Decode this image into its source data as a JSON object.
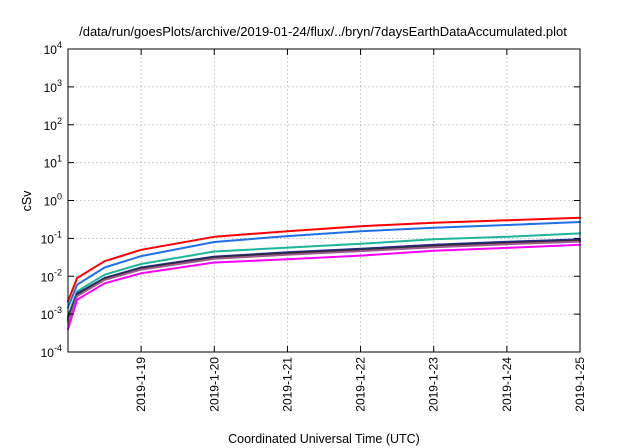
{
  "chart_data": {
    "type": "line",
    "title": "/data/run/goesPlots/archive/2019-01-24/flux/../bryn/7daysEarthDataAccumulated.plot",
    "xlabel": "Coordinated Universal Time (UTC)",
    "ylabel": "cSv",
    "y_scale": "log",
    "ylim": [
      0.0001,
      10000
    ],
    "y_ticks": [
      {
        "value": 0.0001,
        "base": "10",
        "exp": "-4"
      },
      {
        "value": 0.001,
        "base": "10",
        "exp": "-3"
      },
      {
        "value": 0.01,
        "base": "10",
        "exp": "-2"
      },
      {
        "value": 0.1,
        "base": "10",
        "exp": "-1"
      },
      {
        "value": 1,
        "base": "10",
        "exp": "0"
      },
      {
        "value": 10,
        "base": "10",
        "exp": "1"
      },
      {
        "value": 100,
        "base": "10",
        "exp": "2"
      },
      {
        "value": 1000,
        "base": "10",
        "exp": "3"
      },
      {
        "value": 10000,
        "base": "10",
        "exp": "4"
      }
    ],
    "xlim": [
      "2019-01-18",
      "2019-01-25"
    ],
    "x_ticks": [
      "2019-1-19",
      "2019-1-20",
      "2019-1-21",
      "2019-1-22",
      "2019-1-23",
      "2019-1-24",
      "2019-1-25"
    ],
    "grid": true,
    "x": [
      "2019-01-18 00:00",
      "2019-01-18 03:00",
      "2019-01-18 12:00",
      "2019-01-19 00:00",
      "2019-01-20 00:00",
      "2019-01-21 00:00",
      "2019-01-22 00:00",
      "2019-01-23 00:00",
      "2019-01-24 00:00",
      "2019-01-25 00:00"
    ],
    "series": [
      {
        "color": "#ff0000",
        "values": [
          0.0022,
          0.009,
          0.025,
          0.05,
          0.11,
          0.155,
          0.21,
          0.26,
          0.3,
          0.35
        ]
      },
      {
        "color": "#1f6fe6",
        "values": [
          0.0015,
          0.006,
          0.017,
          0.034,
          0.08,
          0.115,
          0.155,
          0.19,
          0.225,
          0.27
        ]
      },
      {
        "color": "#1fb598",
        "values": [
          0.0009,
          0.004,
          0.011,
          0.021,
          0.045,
          0.057,
          0.072,
          0.095,
          0.11,
          0.135
        ]
      },
      {
        "color": "#2a2a8a",
        "values": [
          0.0008,
          0.0035,
          0.009,
          0.017,
          0.033,
          0.043,
          0.053,
          0.068,
          0.081,
          0.094
        ]
      },
      {
        "color": "#2a2a2a",
        "values": [
          0.0007,
          0.0032,
          0.0085,
          0.016,
          0.031,
          0.04,
          0.049,
          0.062,
          0.075,
          0.087
        ]
      },
      {
        "color": "#9c5c8c",
        "values": [
          0.0006,
          0.003,
          0.008,
          0.015,
          0.029,
          0.037,
          0.046,
          0.058,
          0.07,
          0.082
        ]
      },
      {
        "color": "#ff00ff",
        "values": [
          0.0004,
          0.0024,
          0.0065,
          0.012,
          0.023,
          0.028,
          0.035,
          0.047,
          0.056,
          0.068
        ]
      }
    ]
  }
}
